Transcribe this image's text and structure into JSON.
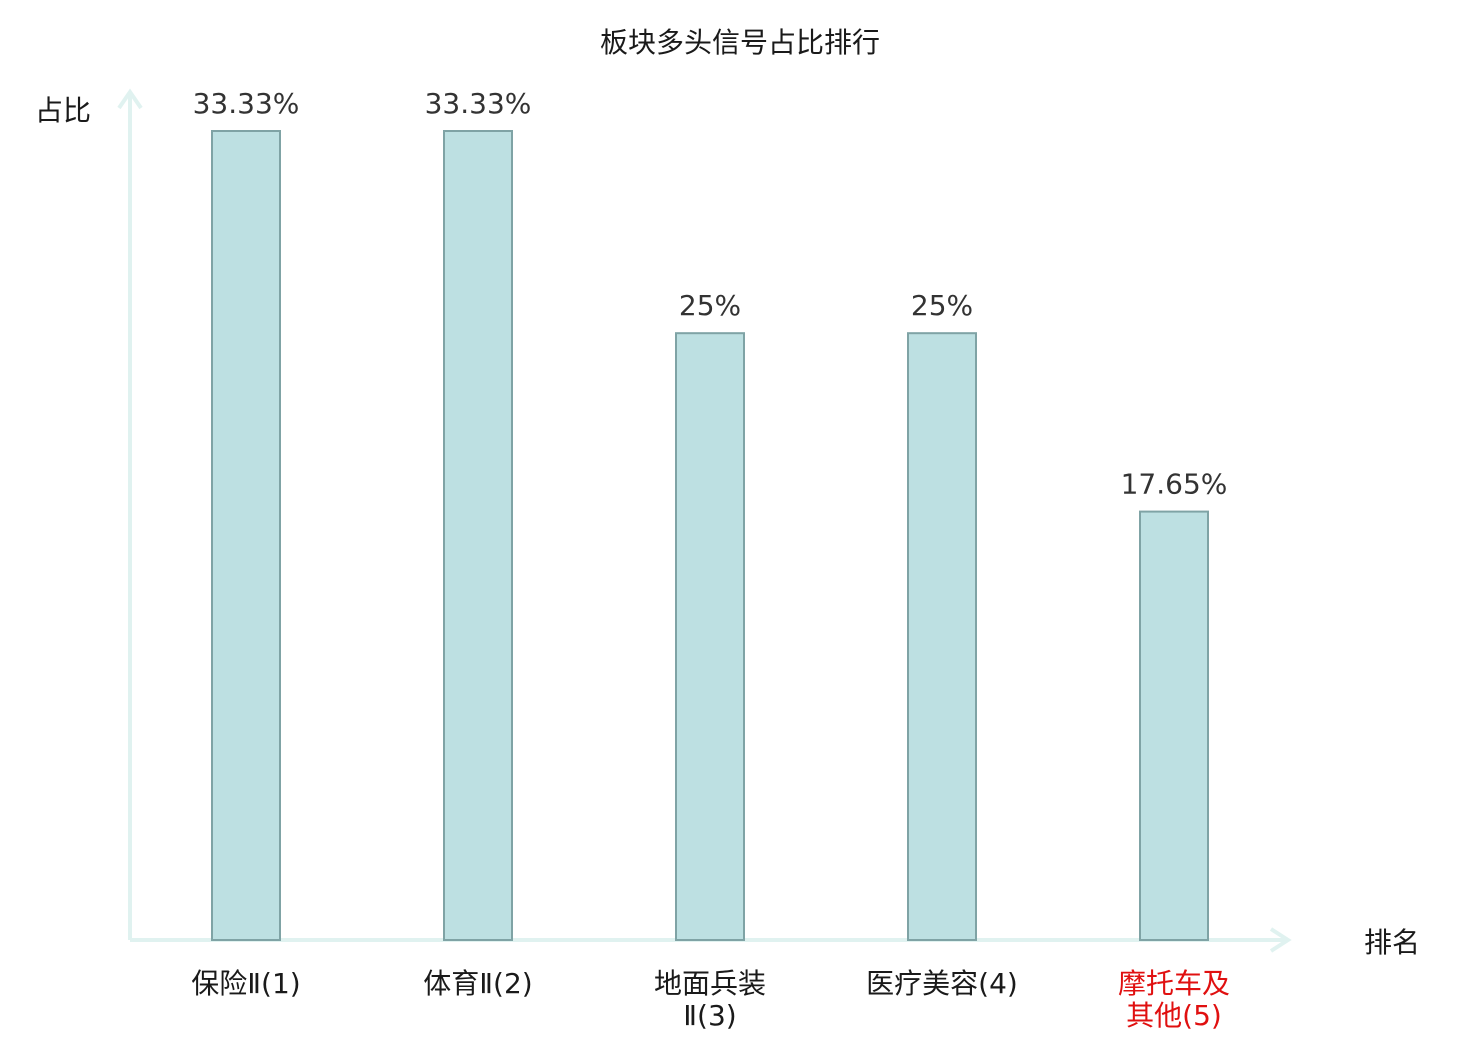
{
  "chart_data": {
    "type": "bar",
    "title": "板块多头信号占比排行",
    "ylabel": "占比",
    "xlabel": "排名",
    "categories": [
      [
        "保险Ⅱ(1)"
      ],
      [
        "体育Ⅱ(2)"
      ],
      [
        "地面兵装",
        "Ⅱ(3)"
      ],
      [
        "医疗美容(4)"
      ],
      [
        "摩托车及",
        "其他(5)"
      ]
    ],
    "values": [
      33.33,
      33.33,
      25,
      25,
      17.65
    ],
    "value_labels": [
      "33.33%",
      "33.33%",
      "25%",
      "25%",
      "17.65%"
    ],
    "highlight_index": 4,
    "ylim": [
      0,
      33.33
    ],
    "grid": false,
    "legend": "none",
    "colors": {
      "bar_fill": "#bde0e2",
      "bar_stroke": "#7fa3a5",
      "axis": "#e0f2f0",
      "label": "#333333",
      "highlight": "#e01010"
    }
  }
}
